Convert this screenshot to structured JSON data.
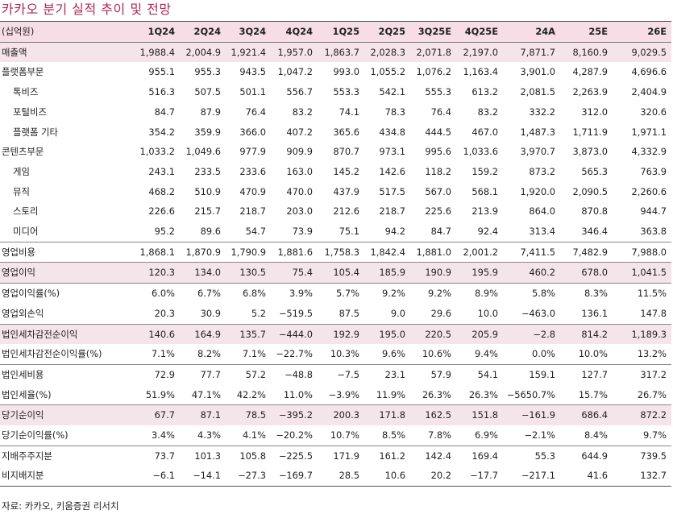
{
  "title": "카카오 분기 실적 추이 및 전망",
  "unit_label": "(십억원)",
  "columns": [
    "1Q24",
    "2Q24",
    "3Q24",
    "4Q24",
    "1Q25",
    "2Q25",
    "3Q25E",
    "4Q25E",
    "24A",
    "25E",
    "26E"
  ],
  "rows": [
    {
      "label": "매출액",
      "values": [
        "1,988.4",
        "2,004.9",
        "1,921.4",
        "1,957.0",
        "1,863.7",
        "2,028.3",
        "2,071.8",
        "2,197.0",
        "7,871.7",
        "8,160.9",
        "9,029.5"
      ]
    },
    {
      "label": "플랫폼부문",
      "values": [
        "955.1",
        "955.3",
        "943.5",
        "1,047.2",
        "993.0",
        "1,055.2",
        "1,076.2",
        "1,163.4",
        "3,901.0",
        "4,287.9",
        "4,696.6"
      ]
    },
    {
      "label": "톡비즈",
      "values": [
        "516.3",
        "507.5",
        "501.1",
        "556.7",
        "553.3",
        "542.1",
        "555.3",
        "613.2",
        "2,081.5",
        "2,263.9",
        "2,404.9"
      ]
    },
    {
      "label": "포털비즈",
      "values": [
        "84.7",
        "87.9",
        "76.4",
        "83.2",
        "74.1",
        "78.3",
        "76.4",
        "83.2",
        "332.2",
        "312.0",
        "320.6"
      ]
    },
    {
      "label": "플랫폼 기타",
      "values": [
        "354.2",
        "359.9",
        "366.0",
        "407.2",
        "365.6",
        "434.8",
        "444.5",
        "467.0",
        "1,487.3",
        "1,711.9",
        "1,971.1"
      ]
    },
    {
      "label": "콘텐츠부문",
      "values": [
        "1,033.2",
        "1,049.6",
        "977.9",
        "909.9",
        "870.7",
        "973.1",
        "995.6",
        "1,033.6",
        "3,970.7",
        "3,873.0",
        "4,332.9"
      ]
    },
    {
      "label": "게임",
      "values": [
        "243.1",
        "233.5",
        "233.6",
        "163.0",
        "145.2",
        "142.6",
        "118.2",
        "159.2",
        "873.2",
        "565.3",
        "763.9"
      ]
    },
    {
      "label": "뮤직",
      "values": [
        "468.2",
        "510.9",
        "470.9",
        "470.0",
        "437.9",
        "517.5",
        "567.0",
        "568.1",
        "1,920.0",
        "2,090.5",
        "2,260.6"
      ]
    },
    {
      "label": "스토리",
      "values": [
        "226.6",
        "215.7",
        "218.7",
        "203.0",
        "212.6",
        "218.7",
        "225.6",
        "213.9",
        "864.0",
        "870.8",
        "944.7"
      ]
    },
    {
      "label": "미디어",
      "values": [
        "95.2",
        "89.6",
        "54.7",
        "73.9",
        "75.1",
        "94.2",
        "84.7",
        "92.4",
        "313.4",
        "346.4",
        "363.8"
      ]
    },
    {
      "label": "영업비용",
      "values": [
        "1,868.1",
        "1,870.9",
        "1,790.9",
        "1,881.6",
        "1,758.3",
        "1,842.4",
        "1,881.0",
        "2,001.2",
        "7,411.5",
        "7,482.9",
        "7,988.0"
      ]
    },
    {
      "label": "영업이익",
      "values": [
        "120.3",
        "134.0",
        "130.5",
        "75.4",
        "105.4",
        "185.9",
        "190.9",
        "195.9",
        "460.2",
        "678.0",
        "1,041.5"
      ]
    },
    {
      "label": "영업이익률(%)",
      "values": [
        "6.0%",
        "6.7%",
        "6.8%",
        "3.9%",
        "5.7%",
        "9.2%",
        "9.2%",
        "8.9%",
        "5.8%",
        "8.3%",
        "11.5%"
      ]
    },
    {
      "label": "영업외손익",
      "values": [
        "20.3",
        "30.9",
        "5.2",
        "−519.5",
        "87.5",
        "9.0",
        "29.6",
        "10.0",
        "−463.0",
        "136.1",
        "147.8"
      ]
    },
    {
      "label": "법인세차감전순이익",
      "values": [
        "140.6",
        "164.9",
        "135.7",
        "−444.0",
        "192.9",
        "195.0",
        "220.5",
        "205.9",
        "−2.8",
        "814.2",
        "1,189.3"
      ]
    },
    {
      "label": "법인세차감전순이익률(%)",
      "values": [
        "7.1%",
        "8.2%",
        "7.1%",
        "−22.7%",
        "10.3%",
        "9.6%",
        "10.6%",
        "9.4%",
        "0.0%",
        "10.0%",
        "13.2%"
      ]
    },
    {
      "label": "법인세비용",
      "values": [
        "72.9",
        "77.7",
        "57.2",
        "−48.8",
        "−7.5",
        "23.1",
        "57.9",
        "54.1",
        "159.1",
        "127.7",
        "317.2"
      ]
    },
    {
      "label": "법인세율(%)",
      "values": [
        "51.9%",
        "47.1%",
        "42.2%",
        "11.0%",
        "−3.9%",
        "11.9%",
        "26.3%",
        "26.3%",
        "−5650.7%",
        "15.7%",
        "26.7%"
      ]
    },
    {
      "label": "당기순이익",
      "values": [
        "67.7",
        "87.1",
        "78.5",
        "−395.2",
        "200.3",
        "171.8",
        "162.5",
        "151.8",
        "−161.9",
        "686.4",
        "872.2"
      ]
    },
    {
      "label": "당기순이익률(%)",
      "values": [
        "3.4%",
        "4.3%",
        "4.1%",
        "−20.2%",
        "10.7%",
        "8.5%",
        "7.8%",
        "6.9%",
        "−2.1%",
        "8.4%",
        "9.7%"
      ]
    },
    {
      "label": "지배주주지분",
      "values": [
        "73.7",
        "101.3",
        "105.8",
        "−225.5",
        "171.9",
        "161.2",
        "142.4",
        "169.4",
        "55.3",
        "644.9",
        "739.5"
      ]
    },
    {
      "label": "비지배지분",
      "values": [
        "−6.1",
        "−14.1",
        "−27.3",
        "−169.7",
        "28.5",
        "10.6",
        "20.2",
        "−17.7",
        "−217.1",
        "41.6",
        "132.7"
      ]
    }
  ],
  "source": "자료: 카카오, 키움증권 리서치",
  "colors": {
    "title": "#b0275a",
    "header_bg": "#f6dde6",
    "highlight_bg": "#f6e4eb"
  }
}
